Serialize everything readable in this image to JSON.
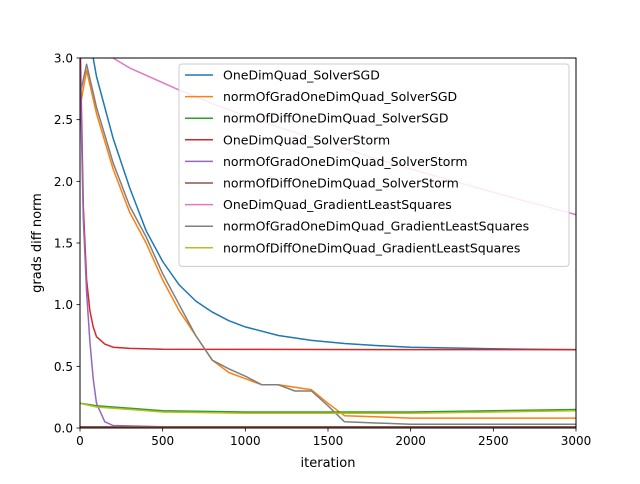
{
  "chart_data": {
    "type": "line",
    "title": "",
    "xlabel": "iteration",
    "ylabel": "grads diff norm",
    "xlim": [
      0,
      3000
    ],
    "ylim": [
      0,
      3.0
    ],
    "x_ticks": [
      0,
      500,
      1000,
      1500,
      2000,
      2500,
      3000
    ],
    "x_tick_labels": [
      "0",
      "500",
      "1000",
      "1500",
      "2000",
      "2500",
      "3000"
    ],
    "y_ticks": [
      0,
      0.5,
      1.0,
      1.5,
      2.0,
      2.5,
      3.0
    ],
    "y_tick_labels": [
      "0.0",
      "0.5",
      "1.0",
      "1.5",
      "2.0",
      "2.5",
      "3.0"
    ],
    "grid": false,
    "legend_position": "upper-right",
    "series": [
      {
        "name": "OneDimQuad_SolverSGD",
        "color": "#1f77b4",
        "x": [
          0,
          100,
          200,
          300,
          400,
          500,
          600,
          700,
          800,
          900,
          1000,
          1200,
          1400,
          1600,
          1800,
          2000,
          2500,
          3000
        ],
        "y": [
          3.6,
          2.85,
          2.35,
          1.95,
          1.6,
          1.35,
          1.16,
          1.03,
          0.94,
          0.87,
          0.82,
          0.75,
          0.71,
          0.685,
          0.668,
          0.655,
          0.642,
          0.635
        ]
      },
      {
        "name": "normOfGradOneDimQuad_SolverSGD",
        "color": "#ff7f0e",
        "x": [
          0,
          40,
          100,
          200,
          300,
          400,
          500,
          600,
          700,
          800,
          900,
          1000,
          1100,
          1200,
          1300,
          1400,
          1500,
          1600,
          2000,
          2500,
          3000
        ],
        "y": [
          2.6,
          2.9,
          2.55,
          2.1,
          1.75,
          1.5,
          1.2,
          0.95,
          0.75,
          0.55,
          0.45,
          0.4,
          0.35,
          0.35,
          0.33,
          0.31,
          0.2,
          0.1,
          0.08,
          0.08,
          0.08
        ]
      },
      {
        "name": "normOfDiffOneDimQuad_SolverSGD",
        "color": "#2ca02c",
        "x": [
          0,
          100,
          500,
          1000,
          1500,
          2000,
          2500,
          3000
        ],
        "y": [
          0.2,
          0.18,
          0.14,
          0.13,
          0.13,
          0.13,
          0.14,
          0.15
        ]
      },
      {
        "name": "OneDimQuad_SolverStorm",
        "color": "#d62728",
        "x": [
          0,
          20,
          40,
          60,
          80,
          100,
          150,
          200,
          300,
          500,
          1000,
          2000,
          3000
        ],
        "y": [
          3.2,
          1.8,
          1.2,
          0.95,
          0.82,
          0.74,
          0.68,
          0.655,
          0.645,
          0.638,
          0.637,
          0.636,
          0.636
        ]
      },
      {
        "name": "normOfGradOneDimQuad_SolverStorm",
        "color": "#9467bd",
        "x": [
          0,
          10,
          20,
          40,
          60,
          80,
          100,
          150,
          200,
          500,
          1000,
          3000
        ],
        "y": [
          3.0,
          2.3,
          1.7,
          1.1,
          0.7,
          0.4,
          0.2,
          0.05,
          0.02,
          0.01,
          0.01,
          0.01
        ]
      },
      {
        "name": "normOfDiffOneDimQuad_SolverStorm",
        "color": "#8c564b",
        "x": [
          0,
          3000
        ],
        "y": [
          0.01,
          0.01
        ]
      },
      {
        "name": "OneDimQuad_GradientLeastSquares",
        "color": "#e377c2",
        "x": [
          200,
          300,
          400,
          500,
          600,
          800,
          1000,
          1200,
          1500,
          1800,
          2000,
          2500,
          3000
        ],
        "y": [
          3.0,
          2.92,
          2.86,
          2.8,
          2.74,
          2.63,
          2.53,
          2.44,
          2.31,
          2.18,
          2.1,
          1.91,
          1.73
        ]
      },
      {
        "name": "normOfGradOneDimQuad_GradientLeastSquares",
        "color": "#7f7f7f",
        "x": [
          0,
          40,
          100,
          200,
          300,
          400,
          500,
          600,
          700,
          800,
          900,
          1000,
          1100,
          1200,
          1300,
          1400,
          1500,
          1600,
          2000,
          2500,
          3000
        ],
        "y": [
          2.7,
          2.95,
          2.6,
          2.15,
          1.8,
          1.55,
          1.25,
          1.0,
          0.75,
          0.55,
          0.48,
          0.42,
          0.35,
          0.35,
          0.3,
          0.3,
          0.18,
          0.05,
          0.03,
          0.03,
          0.03
        ]
      },
      {
        "name": "normOfDiffOneDimQuad_GradientLeastSquares",
        "color": "#bcbd22",
        "x": [
          0,
          100,
          500,
          1000,
          1500,
          2000,
          2500,
          3000
        ],
        "y": [
          0.2,
          0.17,
          0.13,
          0.12,
          0.12,
          0.12,
          0.13,
          0.14
        ]
      }
    ]
  }
}
